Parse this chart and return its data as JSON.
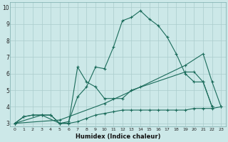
{
  "title": "",
  "xlabel": "Humidex (Indice chaleur)",
  "background_color": "#cce8e8",
  "grid_color": "#aacccc",
  "line_color": "#1a6b5a",
  "xlim": [
    -0.5,
    23.5
  ],
  "ylim": [
    2.8,
    10.3
  ],
  "xticks": [
    0,
    1,
    2,
    3,
    4,
    5,
    6,
    7,
    8,
    9,
    10,
    11,
    12,
    13,
    14,
    15,
    16,
    17,
    18,
    19,
    20,
    21,
    22,
    23
  ],
  "yticks": [
    3,
    4,
    5,
    6,
    7,
    8,
    9,
    10
  ],
  "line_main_x": [
    0,
    1,
    2,
    3,
    4,
    5,
    6,
    7,
    8,
    9,
    10,
    11,
    12,
    13,
    14,
    15,
    16,
    17,
    18,
    19,
    20,
    21,
    22
  ],
  "line_main_y": [
    3.0,
    3.4,
    3.5,
    3.5,
    3.5,
    3.0,
    3.1,
    4.6,
    5.2,
    6.4,
    6.3,
    7.6,
    9.2,
    9.4,
    9.8,
    9.3,
    8.9,
    8.2,
    7.2,
    6.0,
    5.5,
    5.5,
    4.0
  ],
  "line_flat_x": [
    0,
    1,
    2,
    3,
    4,
    5,
    6,
    7,
    8,
    9,
    10,
    11,
    12,
    13,
    14,
    15,
    16,
    17,
    18,
    19,
    20,
    21,
    22,
    23
  ],
  "line_flat_y": [
    3.0,
    3.4,
    3.5,
    3.5,
    3.5,
    3.0,
    3.0,
    3.1,
    3.3,
    3.5,
    3.6,
    3.7,
    3.8,
    3.8,
    3.8,
    3.8,
    3.8,
    3.8,
    3.8,
    3.8,
    3.9,
    3.9,
    3.9,
    4.0
  ],
  "line_mid_x": [
    0,
    5,
    10,
    14,
    19,
    21,
    22,
    23
  ],
  "line_mid_y": [
    3.0,
    3.2,
    4.2,
    5.2,
    6.5,
    7.2,
    5.5,
    4.0
  ],
  "line_jagged_x": [
    0,
    3,
    5,
    6,
    7,
    8,
    9,
    10,
    11,
    12,
    13,
    19,
    20,
    21,
    22
  ],
  "line_jagged_y": [
    3.0,
    3.5,
    3.0,
    3.0,
    6.4,
    5.5,
    5.2,
    4.5,
    4.5,
    4.5,
    5.0,
    6.1,
    6.1,
    5.5,
    4.0
  ]
}
